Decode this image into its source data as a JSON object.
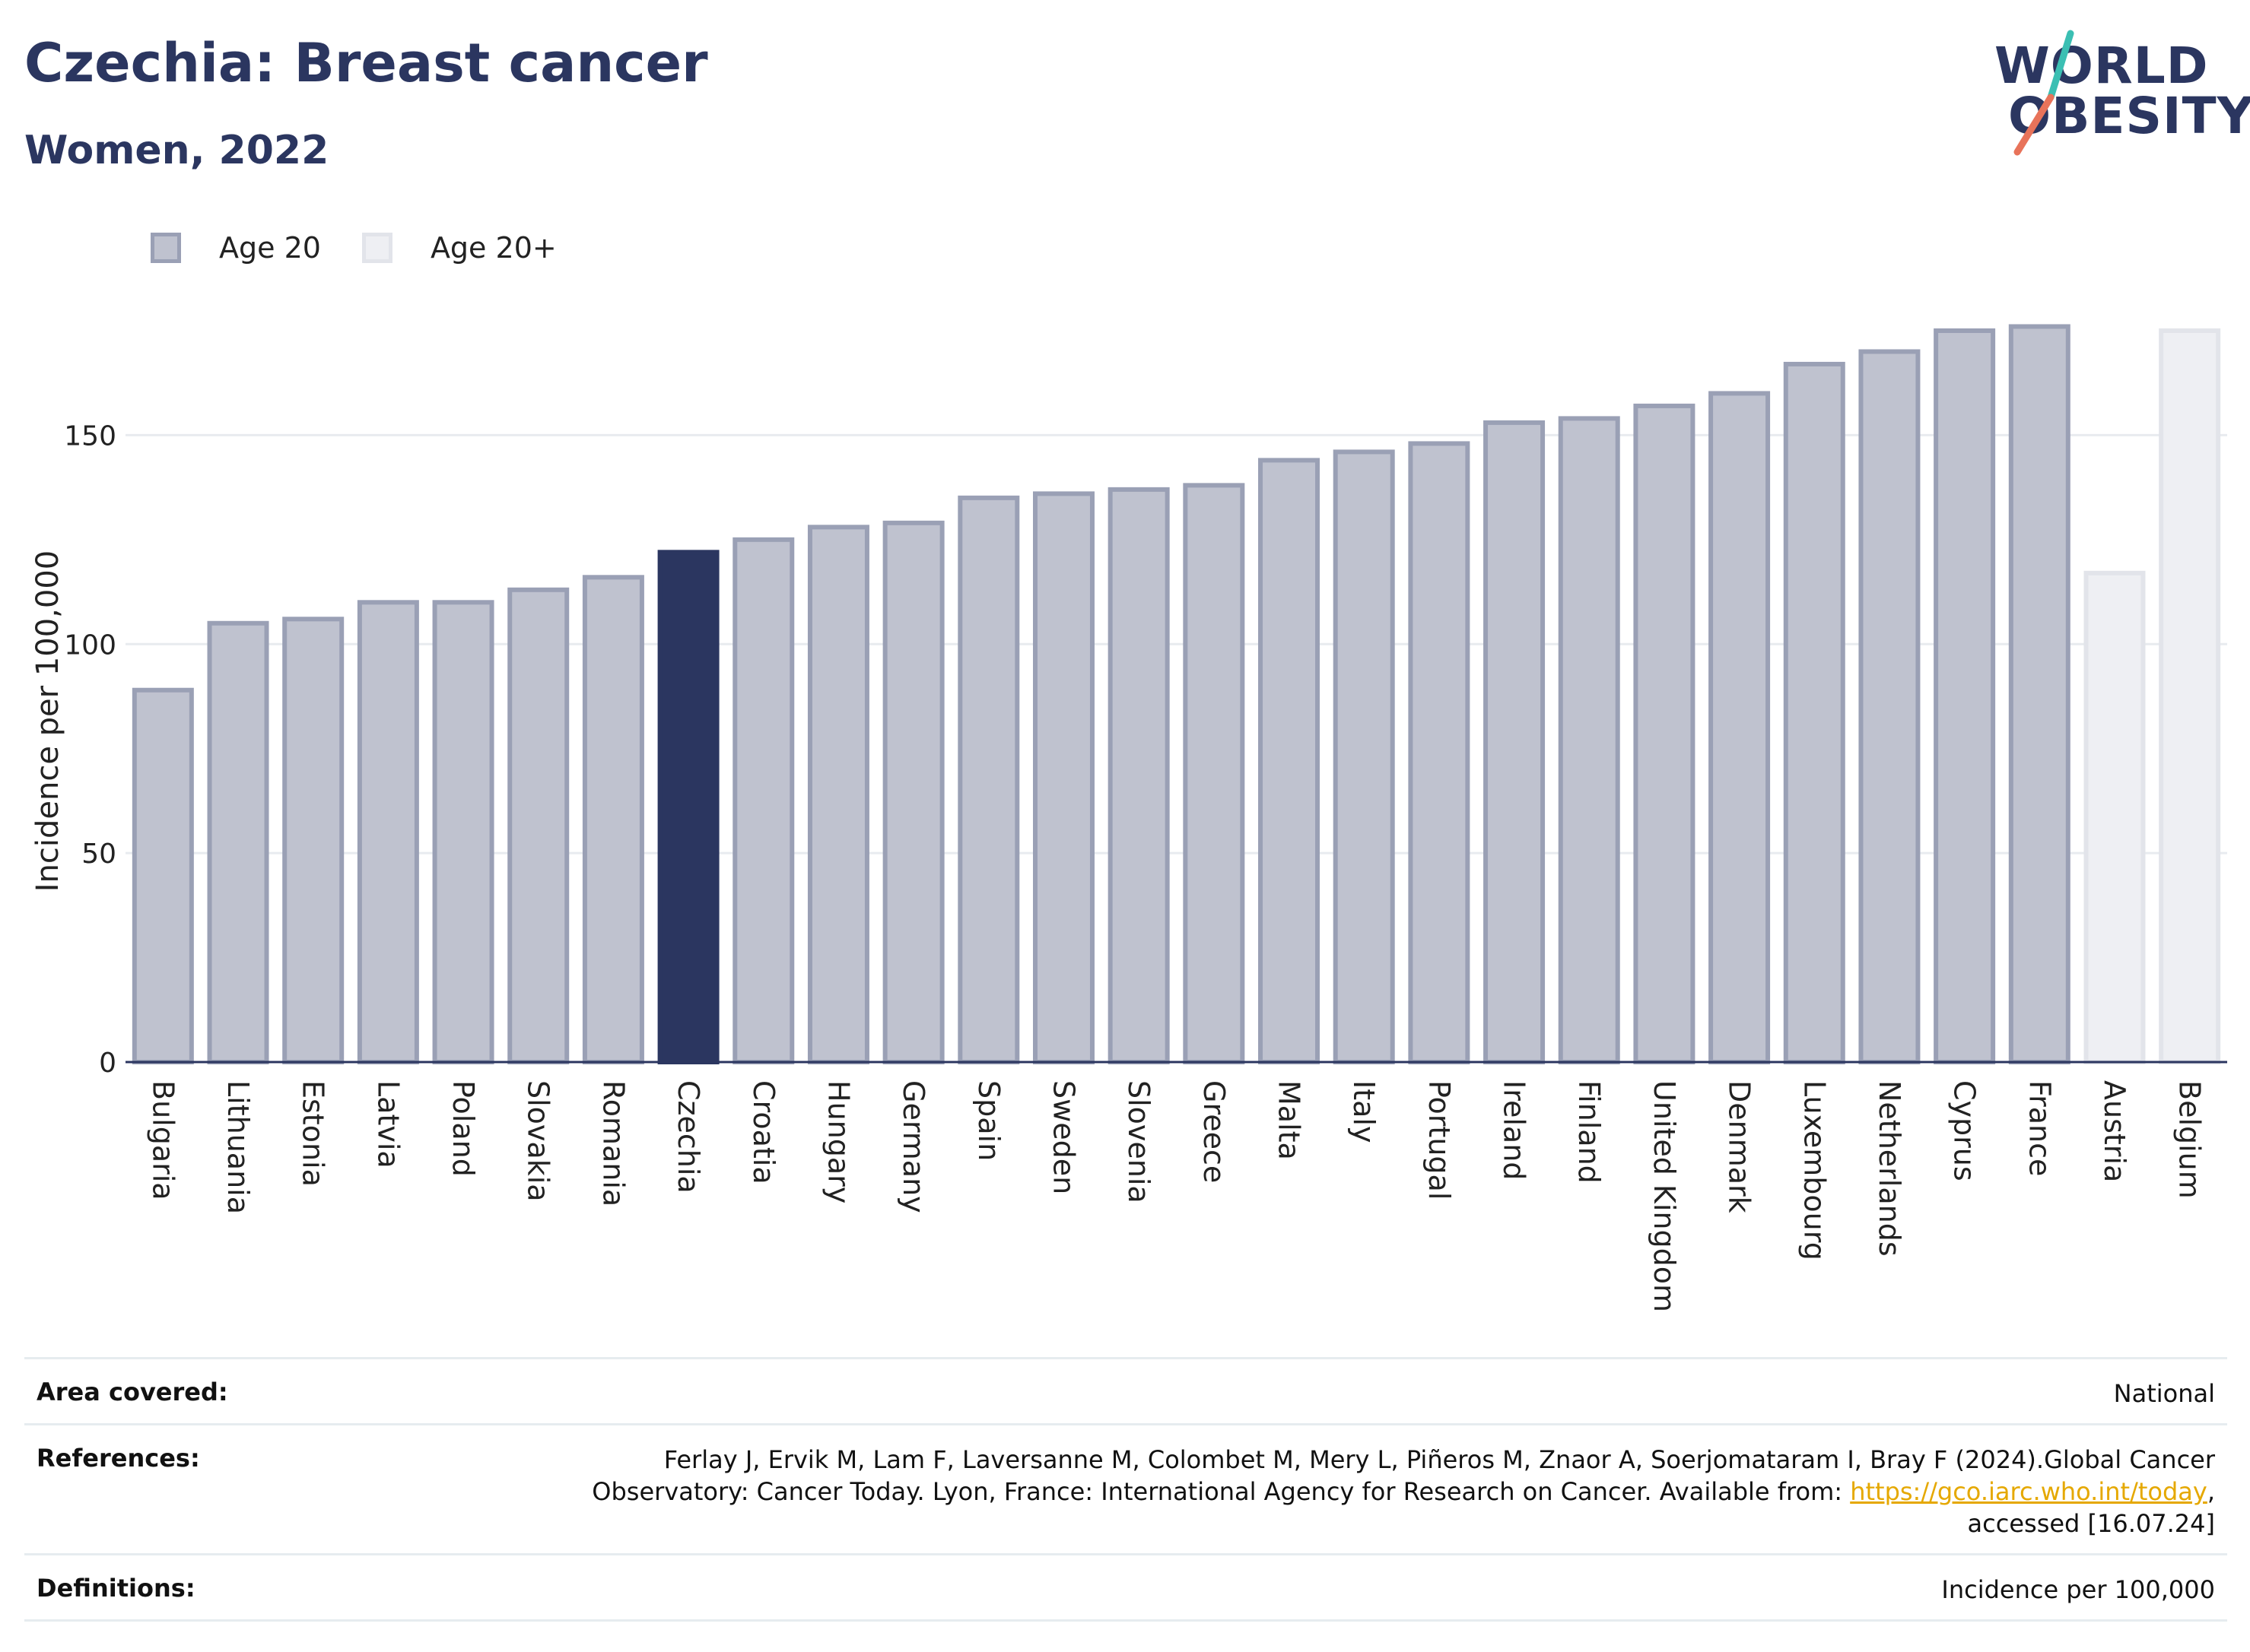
{
  "title": "Czechia: Breast cancer",
  "subtitle": "Women, 2022",
  "logo": {
    "line1": "WORLD",
    "line2": "OBESITY"
  },
  "colors": {
    "highlight": "#2b3660",
    "age20_fill": "#bfc2cf",
    "age20_stroke": "#9aa0b5",
    "age20plus_fill": "#eeeff3",
    "age20plus_stroke": "#e2e4ea",
    "logo_teal": "#3bbfb3",
    "logo_coral": "#e8735a",
    "link": "#e5a800"
  },
  "legend": [
    {
      "label": "Age 20",
      "key": "age20"
    },
    {
      "label": "Age 20+",
      "key": "age20plus"
    }
  ],
  "chart_data": {
    "type": "bar",
    "ylabel": "Incidence per 100,000",
    "ylim": [
      0,
      185
    ],
    "yticks": [
      0,
      50,
      100,
      150
    ],
    "grid": true,
    "highlight": "Czechia",
    "categories": [
      "Bulgaria",
      "Lithuania",
      "Estonia",
      "Latvia",
      "Poland",
      "Slovakia",
      "Romania",
      "Czechia",
      "Croatia",
      "Hungary",
      "Germany",
      "Spain",
      "Sweden",
      "Slovenia",
      "Greece",
      "Malta",
      "Italy",
      "Portugal",
      "Ireland",
      "Finland",
      "United Kingdom",
      "Denmark",
      "Luxembourg",
      "Netherlands",
      "Cyprus",
      "France",
      "Austria",
      "Belgium"
    ],
    "values": [
      89,
      105,
      106,
      110,
      110,
      113,
      116,
      122,
      125,
      128,
      129,
      135,
      136,
      137,
      138,
      144,
      146,
      148,
      153,
      154,
      157,
      160,
      167,
      170,
      175,
      176,
      117,
      175
    ],
    "series_key": [
      "age20",
      "age20",
      "age20",
      "age20",
      "age20",
      "age20",
      "age20",
      "age20",
      "age20",
      "age20",
      "age20",
      "age20",
      "age20",
      "age20",
      "age20",
      "age20",
      "age20",
      "age20",
      "age20",
      "age20",
      "age20",
      "age20",
      "age20",
      "age20",
      "age20",
      "age20",
      "age20plus",
      "age20plus"
    ]
  },
  "info": {
    "area_label": "Area covered:",
    "area_value": "National",
    "references_label": "References:",
    "references_text": "Ferlay J, Ervik M, Lam F, Laversanne M, Colombet M, Mery L, Piñeros M, Znaor A, Soerjomataram I, Bray F (2024).Global Cancer Observatory: Cancer Today. Lyon, France: International Agency for Research on Cancer. Available from:",
    "references_link": "https://gco.iarc.who.int/today",
    "references_tail": ", accessed [16.07.24]",
    "definitions_label": "Definitions:",
    "definitions_value": "Incidence per 100,000"
  }
}
